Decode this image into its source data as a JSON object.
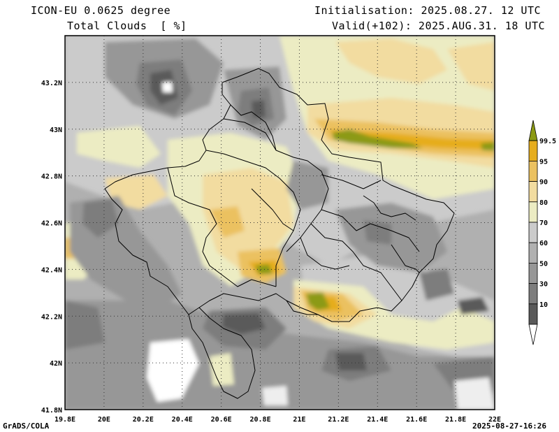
{
  "header": {
    "model": "ICON-EU 0.0625 degree",
    "field": "Total Clouds  [ %]",
    "init": "Initialisation: 2025.08.27. 12 UTC",
    "valid": "Valid(+102): 2025.AUG.31. 18 UTC"
  },
  "footer": {
    "left": "GrADS/COLA",
    "right": "2025-08-27-16:26"
  },
  "map": {
    "lon_ticks": [
      "19.8E",
      "20E",
      "20.2E",
      "20.4E",
      "20.6E",
      "20.8E",
      "21E",
      "21.2E",
      "21.4E",
      "21.6E",
      "21.8E",
      "22E"
    ],
    "lat_ticks": [
      "43.2N",
      "43N",
      "42.8N",
      "42.6N",
      "42.4N",
      "42.2N",
      "42N",
      "41.8N"
    ],
    "lon_range": [
      19.8,
      22.0
    ],
    "lat_range": [
      41.8,
      43.4
    ]
  },
  "colorbar": {
    "labels": [
      "99.5",
      "95",
      "90",
      "80",
      "70",
      "60",
      "50",
      "30",
      "10"
    ],
    "colors": {
      "c10": "#5a5a5a",
      "c30": "#7d7d7d",
      "c50": "#979797",
      "c60": "#b0b0b0",
      "c70": "#cbcbcb",
      "c80": "#ececc3",
      "c90": "#f2dca0",
      "c95": "#ebc160",
      "c99": "#e6ad1e",
      "c100": "#8c9a14"
    }
  }
}
